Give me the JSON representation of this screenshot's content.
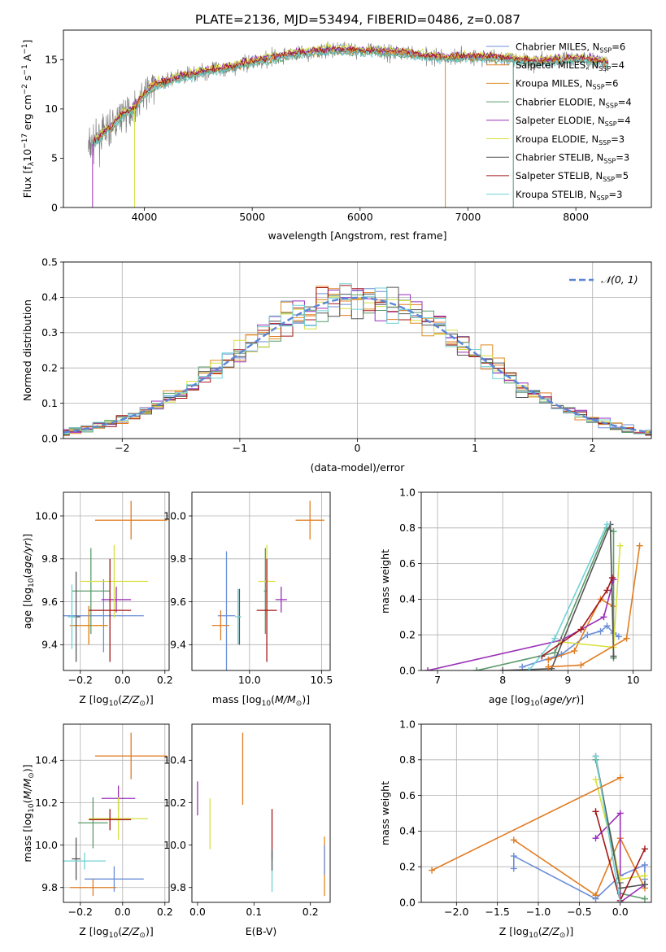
{
  "title": "PLATE=2136, MJD=53494, FIBERID=0486, z=0.087",
  "series": [
    {
      "name": "Chabrier MILES",
      "nssp": "6",
      "color": "#6b8fd8"
    },
    {
      "name": "Salpeter MILES",
      "nssp": "4",
      "color": "#e07d23"
    },
    {
      "name": "Kroupa MILES",
      "nssp": "6",
      "color": "#e08a23"
    },
    {
      "name": "Chabrier ELODIE",
      "nssp": "4",
      "color": "#5a9a6a"
    },
    {
      "name": "Salpeter ELODIE",
      "nssp": "4",
      "color": "#9a2fb8"
    },
    {
      "name": "Kroupa ELODIE",
      "nssp": "3",
      "color": "#d8e040"
    },
    {
      "name": "Chabrier STELIB",
      "nssp": "3",
      "color": "#555555"
    },
    {
      "name": "Salpeter STELIB",
      "nssp": "5",
      "color": "#a31717"
    },
    {
      "name": "Kroupa STELIB",
      "nssp": "3",
      "color": "#70d2d6"
    }
  ],
  "chart_data": [
    {
      "id": "spectrum",
      "type": "line",
      "xlabel": "wavelength [Angstrom, rest frame]",
      "ylabel": "Flux [f_λ 10^-17 erg cm^-2 s^-1 A^-1]",
      "xlim": [
        3250,
        8700
      ],
      "ylim": [
        0,
        18
      ],
      "xticks": [
        4000,
        5000,
        6000,
        7000,
        8000
      ],
      "yticks": [
        0,
        5,
        10,
        15
      ],
      "grid": false,
      "legend": "top-right",
      "continuum": {
        "x": [
          3480,
          3600,
          3700,
          3800,
          3900,
          4000,
          4100,
          4200,
          4400,
          4600,
          4800,
          5000,
          5200,
          5400,
          5600,
          5800,
          6000,
          6200,
          6400,
          6600,
          6800,
          7000,
          7200,
          7400,
          7600,
          7800,
          8000,
          8200,
          8300
        ],
        "y": [
          6.0,
          7.3,
          8.2,
          9.5,
          10.0,
          11.5,
          12.4,
          12.8,
          13.4,
          13.9,
          14.2,
          14.8,
          15.2,
          15.6,
          15.8,
          16.0,
          15.9,
          15.8,
          15.7,
          15.4,
          15.2,
          15.3,
          15.2,
          15.1,
          14.8,
          14.9,
          15.1,
          14.9,
          14.6
        ]
      }
    },
    {
      "id": "residuals",
      "type": "line",
      "xlabel": "(data-model)/error",
      "ylabel": "Normed distribution",
      "xlim": [
        -2.5,
        2.5
      ],
      "ylim": [
        0,
        0.5
      ],
      "xticks": [
        -2,
        -1,
        0,
        1,
        2
      ],
      "xtick_labels": [
        "−2",
        "−1",
        "0",
        "1",
        "2"
      ],
      "yticks": [
        0.0,
        0.1,
        0.2,
        0.3,
        0.4,
        0.5
      ],
      "ytick_labels": [
        "0.0",
        "0.1",
        "0.2",
        "0.3",
        "0.4",
        "0.5"
      ],
      "grid": true,
      "legend": "top-right",
      "reference_label": "𝒩(0, 1)",
      "bin_width": 0.1
    },
    {
      "id": "age_vs_Z",
      "type": "scatter",
      "xlabel": "Z [log10(Z/Z☉)]",
      "ylabel": "age [log10(age/yr)]",
      "xlim": [
        -0.28,
        0.22
      ],
      "ylim": [
        9.28,
        10.11
      ],
      "xticks": [
        -0.2,
        0.0,
        0.2
      ],
      "xtick_labels": [
        "−0.2",
        "0.0",
        "0.2"
      ],
      "yticks": [
        9.4,
        9.6,
        9.8,
        10.0
      ],
      "ytick_labels": [
        "9.4",
        "9.6",
        "9.8",
        "10.0"
      ],
      "grid": true,
      "points": [
        {
          "series": 0,
          "x": -0.09,
          "xerr": 0.19,
          "y": 9.535,
          "yerr": 0.17
        },
        {
          "series": 1,
          "x": -0.16,
          "xerr": 0.09,
          "y": 9.49,
          "yerr": 0.09
        },
        {
          "series": 2,
          "x": -0.16,
          "xerr": 0.09,
          "y": 9.49,
          "yerr": 0.09
        },
        {
          "series": 3,
          "x": -0.15,
          "xerr": 0.09,
          "y": 9.65,
          "yerr": 0.2
        },
        {
          "series": 4,
          "x": -0.03,
          "xerr": 0.07,
          "y": 9.61,
          "yerr": 0.06
        },
        {
          "series": 5,
          "x": -0.04,
          "xerr": 0.16,
          "y": 9.695,
          "yerr": 0.17
        },
        {
          "series": 6,
          "x": -0.22,
          "xerr": 0.02,
          "y": 9.53,
          "yerr": 0.21
        },
        {
          "series": 7,
          "x": -0.06,
          "xerr": 0.1,
          "y": 9.56,
          "yerr": 0.24
        },
        {
          "series": 8,
          "x": -0.24,
          "xerr": 0.02,
          "y": 9.53,
          "yerr": 0.15
        },
        {
          "series": 1,
          "x": 0.04,
          "xerr": 0.17,
          "y": 9.98,
          "yerr": 0.09
        }
      ]
    },
    {
      "id": "age_vs_mass",
      "type": "scatter",
      "xlabel": "mass [log10(M/M☉)]",
      "ylabel": "",
      "xlim": [
        9.6,
        10.56
      ],
      "ylim": [
        9.28,
        10.11
      ],
      "xticks": [
        10.0,
        10.5
      ],
      "xtick_labels": [
        "10.0",
        "10.5"
      ],
      "yticks": [
        9.4,
        9.6,
        9.8,
        10.0
      ],
      "ytick_labels": [
        "9.4",
        "9.6",
        "9.8",
        "10.0"
      ],
      "grid": true,
      "points": [
        {
          "series": 0,
          "x": 9.84,
          "xerr": 0.06,
          "y": 9.535,
          "yerr": 0.3
        },
        {
          "series": 1,
          "x": 9.8,
          "xerr": 0.06,
          "y": 9.49,
          "yerr": 0.07
        },
        {
          "series": 3,
          "x": 10.11,
          "xerr": 0.01,
          "y": 9.65,
          "yerr": 0.2
        },
        {
          "series": 4,
          "x": 10.22,
          "xerr": 0.04,
          "y": 9.61,
          "yerr": 0.06
        },
        {
          "series": 5,
          "x": 10.12,
          "xerr": 0.06,
          "y": 9.695,
          "yerr": 0.17
        },
        {
          "series": 6,
          "x": 9.93,
          "xerr": 0.01,
          "y": 9.53,
          "yerr": 0.13
        },
        {
          "series": 7,
          "x": 10.12,
          "xerr": 0.07,
          "y": 9.56,
          "yerr": 0.24
        },
        {
          "series": 8,
          "x": 9.92,
          "xerr": 0.02,
          "y": 9.53,
          "yerr": 0.13
        },
        {
          "series": 1,
          "x": 10.42,
          "xerr": 0.1,
          "y": 9.98,
          "yerr": 0.09
        }
      ]
    },
    {
      "id": "massweight_vs_age",
      "type": "line",
      "xlabel": "age [log10(age/yr)]",
      "ylabel": "mass weight",
      "xlim": [
        6.75,
        10.28
      ],
      "ylim": [
        0,
        1
      ],
      "xticks": [
        7,
        8,
        9,
        10
      ],
      "yticks": [
        0.0,
        0.2,
        0.4,
        0.6,
        0.8,
        1.0
      ],
      "ytick_labels": [
        "0.0",
        "0.2",
        "0.4",
        "0.6",
        "0.8",
        "1.0"
      ],
      "grid": true,
      "lines": [
        {
          "series": 0,
          "x": [
            8.3,
            8.9,
            9.3,
            9.5,
            9.6,
            9.7,
            9.78
          ],
          "y": [
            0.02,
            0.09,
            0.2,
            0.22,
            0.25,
            0.21,
            0.19
          ]
        },
        {
          "series": 1,
          "x": [
            8.7,
            9.1,
            9.5,
            9.7
          ],
          "y": [
            0.06,
            0.11,
            0.4,
            0.36
          ]
        },
        {
          "series": 3,
          "x": [
            7.6,
            8.8,
            9.6,
            9.7,
            9.7
          ],
          "y": [
            0.0,
            0.1,
            0.8,
            0.78,
            0.07
          ]
        },
        {
          "series": 4,
          "x": [
            6.85,
            8.9,
            9.55,
            9.7
          ],
          "y": [
            0.0,
            0.17,
            0.3,
            0.51
          ]
        },
        {
          "series": 5,
          "x": [
            8.9,
            9.7,
            9.8
          ],
          "y": [
            0.16,
            0.13,
            0.7
          ]
        },
        {
          "series": 6,
          "x": [
            8.0,
            8.75,
            9.65,
            9.7
          ],
          "y": [
            0.0,
            0.01,
            0.82,
            0.08
          ]
        },
        {
          "series": 7,
          "x": [
            8.6,
            9.2,
            9.6,
            9.68
          ],
          "y": [
            0.08,
            0.23,
            0.45,
            0.52
          ]
        },
        {
          "series": 8,
          "x": [
            8.4,
            8.8,
            9.6
          ],
          "y": [
            0.0,
            0.18,
            0.82
          ]
        },
        {
          "series": 1,
          "x": [
            8.7,
            9.2,
            9.9,
            10.1
          ],
          "y": [
            0.02,
            0.03,
            0.18,
            0.7
          ]
        }
      ]
    },
    {
      "id": "mass_vs_Z",
      "type": "scatter",
      "xlabel": "Z [log10(Z/Z☉)]",
      "ylabel": "mass [log10(M/M☉)]",
      "xlim": [
        -0.28,
        0.22
      ],
      "ylim": [
        9.73,
        10.57
      ],
      "xticks": [
        -0.2,
        0.0,
        0.2
      ],
      "xtick_labels": [
        "−0.2",
        "0.0",
        "0.2"
      ],
      "yticks": [
        9.8,
        10.0,
        10.2,
        10.4
      ],
      "ytick_labels": [
        "9.8",
        "10.0",
        "10.2",
        "10.4"
      ],
      "grid": true,
      "points": [
        {
          "series": 0,
          "x": -0.04,
          "xerr": 0.14,
          "y": 9.84,
          "yerr": 0.06
        },
        {
          "series": 1,
          "x": -0.14,
          "xerr": 0.11,
          "y": 9.8,
          "yerr": 0.04
        },
        {
          "series": 3,
          "x": -0.14,
          "xerr": 0.07,
          "y": 10.105,
          "yerr": 0.12
        },
        {
          "series": 4,
          "x": -0.02,
          "xerr": 0.08,
          "y": 10.22,
          "yerr": 0.06
        },
        {
          "series": 5,
          "x": -0.02,
          "xerr": 0.14,
          "y": 10.125,
          "yerr": 0.1
        },
        {
          "series": 6,
          "x": -0.22,
          "xerr": 0.02,
          "y": 9.935,
          "yerr": 0.1
        },
        {
          "series": 7,
          "x": -0.06,
          "xerr": 0.1,
          "y": 10.12,
          "yerr": 0.05
        },
        {
          "series": 8,
          "x": -0.18,
          "xerr": 0.1,
          "y": 9.925,
          "yerr": 0.04
        },
        {
          "series": 1,
          "x": 0.04,
          "xerr": 0.17,
          "y": 10.42,
          "yerr": 0.11
        }
      ]
    },
    {
      "id": "mass_vs_EBV",
      "type": "scatter",
      "xlabel": "E(B-V)",
      "ylabel": "",
      "xlim": [
        -0.01,
        0.235
      ],
      "ylim": [
        9.73,
        10.57
      ],
      "xticks": [
        0.0,
        0.1,
        0.2
      ],
      "xtick_labels": [
        "0.0",
        "0.1",
        "0.2"
      ],
      "yticks": [
        9.8,
        10.0,
        10.2,
        10.4
      ],
      "ytick_labels": [
        "9.8",
        "10.0",
        "10.2",
        "10.4"
      ],
      "grid": false,
      "points": [
        {
          "series": 4,
          "x": 0.0,
          "y": 10.22,
          "yerr": 0.08
        },
        {
          "series": 5,
          "x": 0.022,
          "y": 10.1,
          "yerr": 0.12
        },
        {
          "series": 1,
          "x": 0.08,
          "y": 10.36,
          "yerr": 0.17
        },
        {
          "series": 7,
          "x": 0.132,
          "y": 10.05,
          "yerr": 0.12
        },
        {
          "series": 8,
          "x": 0.132,
          "y": 9.88,
          "yerr": 0.1
        },
        {
          "series": 6,
          "x": 0.132,
          "y": 9.93,
          "yerr": 0.05
        },
        {
          "series": 2,
          "x": 0.225,
          "y": 9.9,
          "yerr": 0.14
        },
        {
          "series": 0,
          "x": 0.225,
          "y": 9.93,
          "yerr": 0.07
        }
      ]
    },
    {
      "id": "massweight_vs_Z",
      "type": "line",
      "xlabel": "Z [log10(Z/Z☉)]",
      "ylabel": "mass weight",
      "xlim": [
        -2.43,
        0.38
      ],
      "ylim": [
        0,
        1
      ],
      "xticks": [
        -2.0,
        -1.5,
        -1.0,
        -0.5,
        0.0
      ],
      "xtick_labels": [
        "−2.0",
        "−1.5",
        "−1.0",
        "−0.5",
        "0.0"
      ],
      "yticks": [
        0.0,
        0.2,
        0.4,
        0.6,
        0.8,
        1.0
      ],
      "ytick_labels": [
        "0.0",
        "0.2",
        "0.4",
        "0.6",
        "0.8",
        "1.0"
      ],
      "grid": true,
      "lines": [
        {
          "series": 0,
          "x": [
            -1.3,
            -1.3,
            -0.3,
            0.0,
            0.3,
            0.3
          ],
          "y": [
            0.19,
            0.26,
            0.02,
            0.15,
            0.21,
            0.13
          ]
        },
        {
          "series": 1,
          "x": [
            -1.3,
            -0.3,
            0.0,
            0.3
          ],
          "y": [
            0.35,
            0.04,
            0.36,
            0.08
          ]
        },
        {
          "series": 3,
          "x": [
            -0.3,
            0.0,
            0.0,
            0.3
          ],
          "y": [
            0.8,
            0.11,
            0.05,
            0.02
          ]
        },
        {
          "series": 4,
          "x": [
            -0.3,
            0.0,
            0.0,
            0.3
          ],
          "y": [
            0.36,
            0.5,
            0.0,
            0.1
          ]
        },
        {
          "series": 5,
          "x": [
            -0.3,
            0.0,
            0.3
          ],
          "y": [
            0.69,
            0.13,
            0.15
          ]
        },
        {
          "series": 6,
          "x": [
            -0.3,
            0.0,
            0.3
          ],
          "y": [
            0.82,
            0.08,
            0.1
          ]
        },
        {
          "series": 7,
          "x": [
            -0.3,
            0.0,
            0.3
          ],
          "y": [
            0.51,
            0.01,
            0.3
          ]
        },
        {
          "series": 8,
          "x": [
            -0.3,
            0.0
          ],
          "y": [
            0.82,
            0.0
          ]
        },
        {
          "series": 1,
          "x": [
            -2.3,
            0.0
          ],
          "y": [
            0.18,
            0.7
          ]
        }
      ]
    }
  ]
}
